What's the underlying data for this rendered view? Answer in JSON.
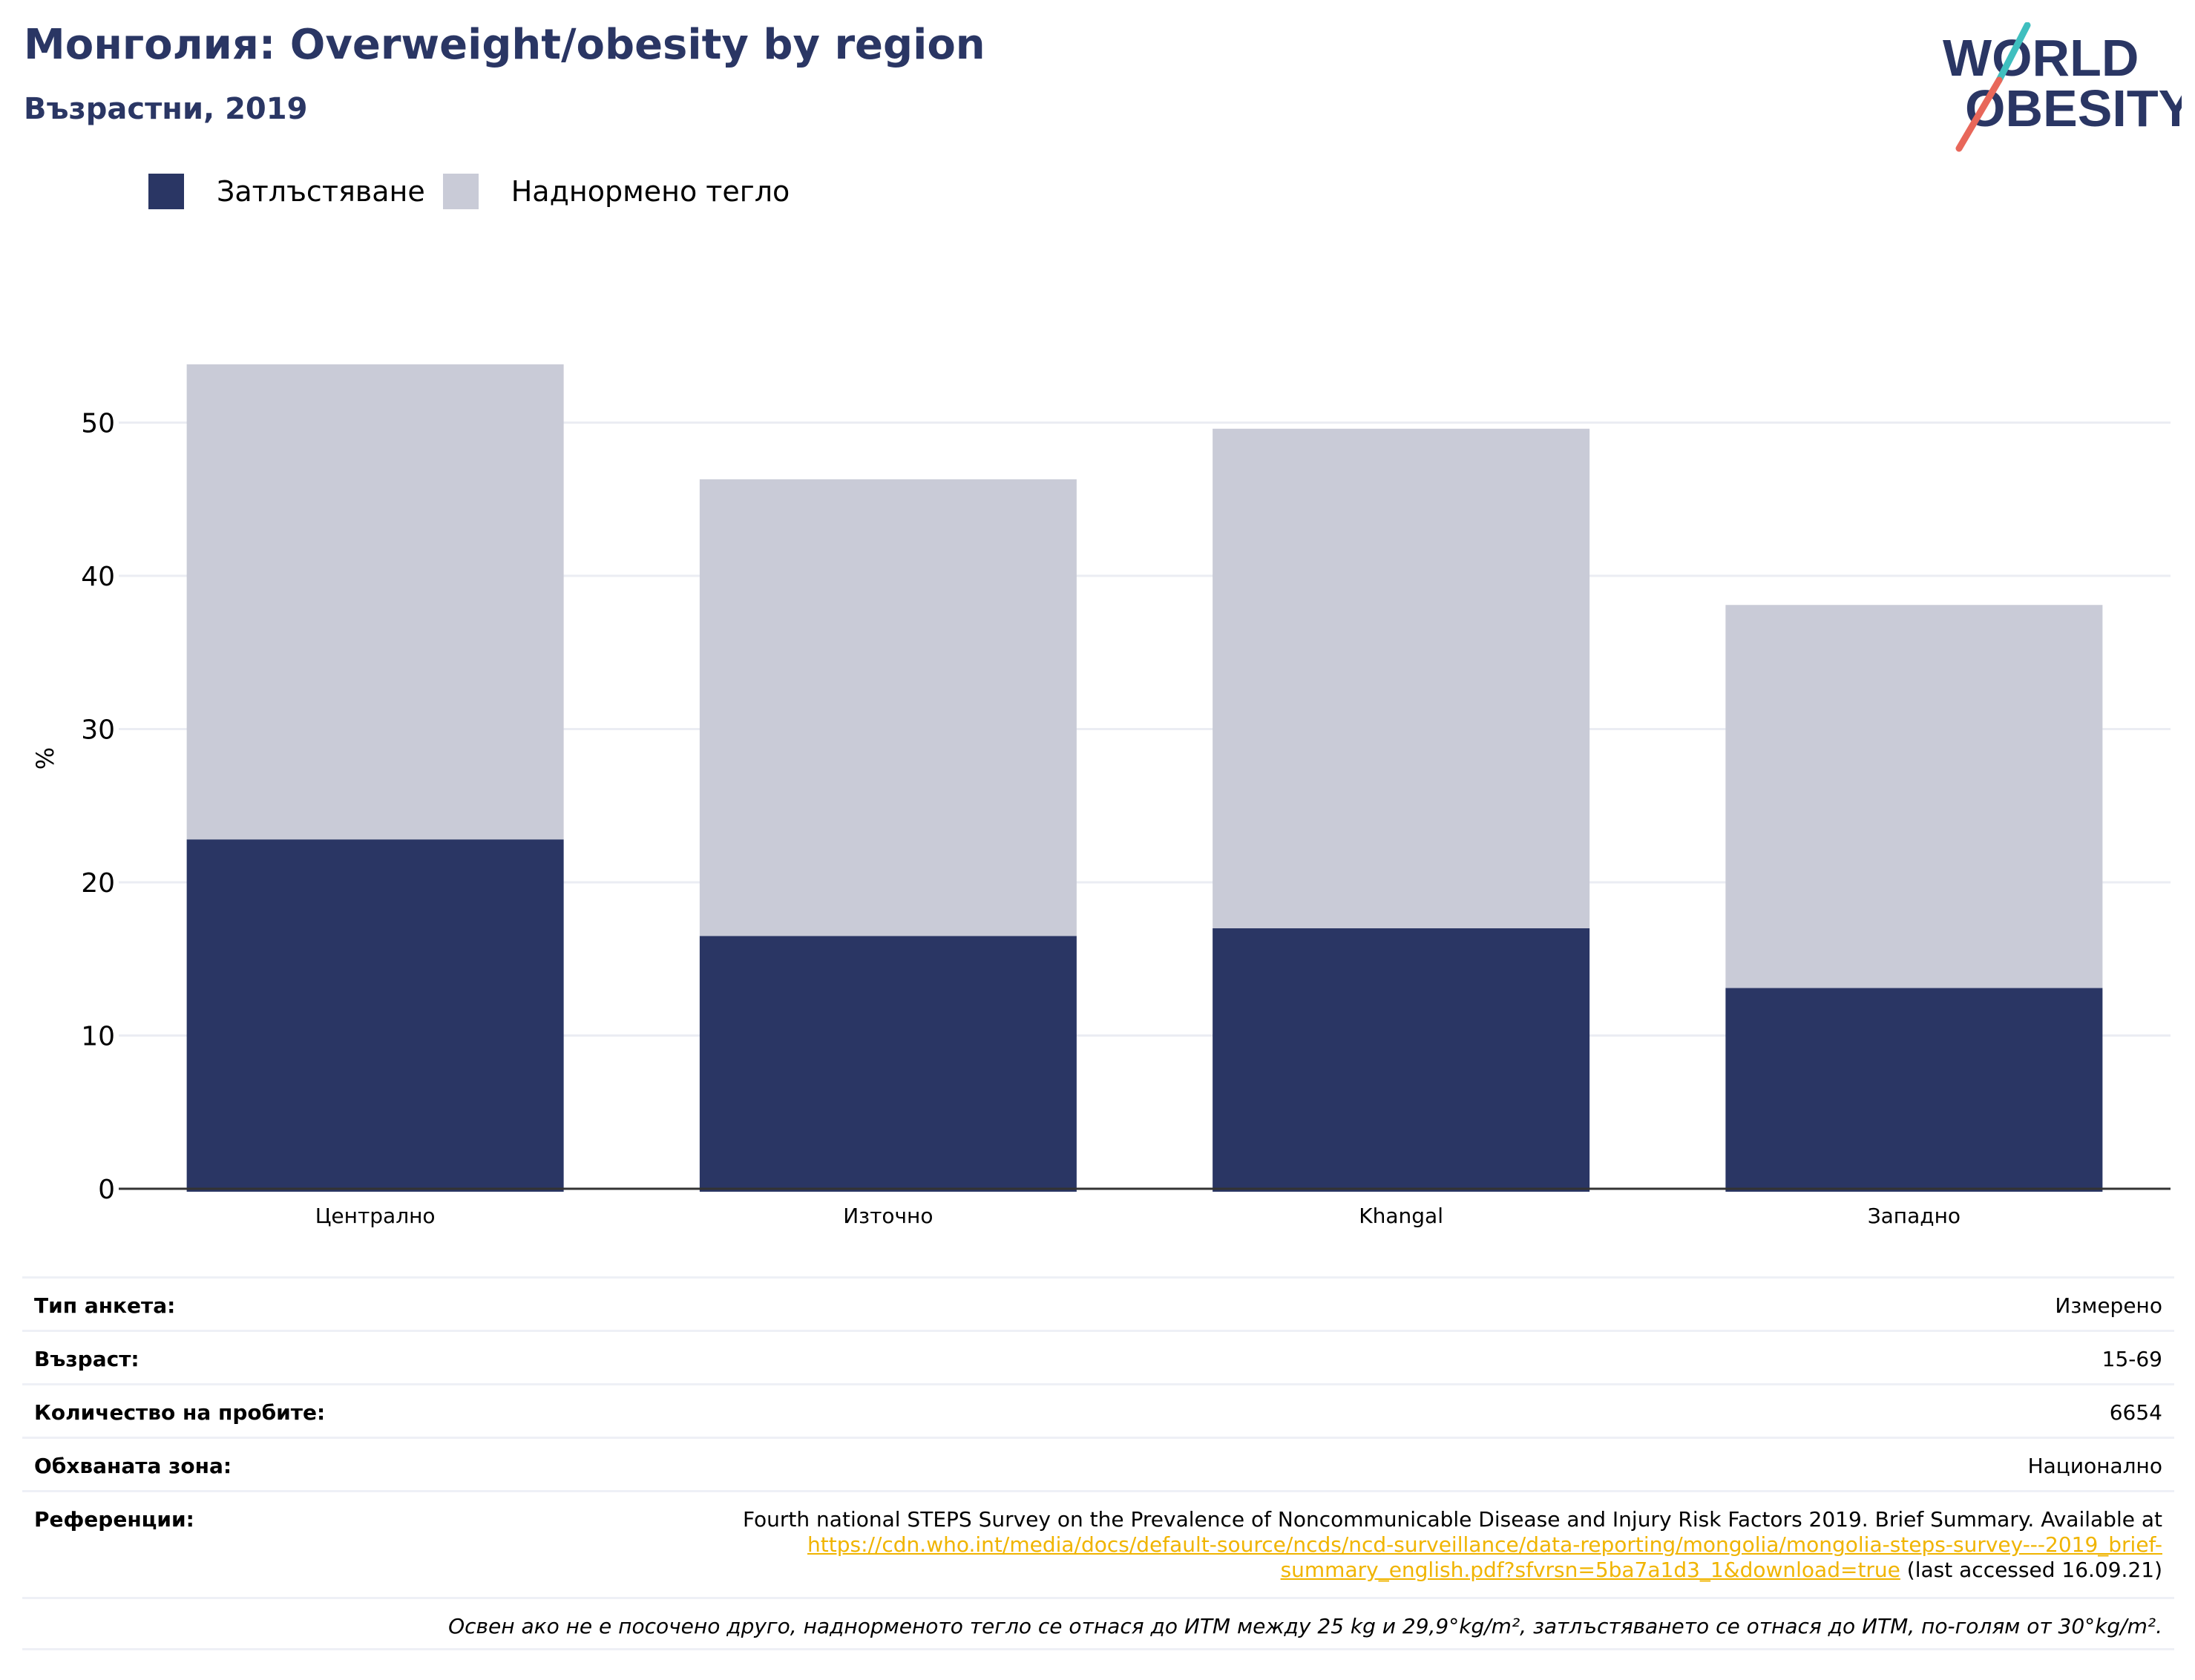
{
  "header": {
    "title": "Монголия: Overweight/obesity by region",
    "subtitle": "Възрастни, 2019"
  },
  "logo": {
    "line1": "WORLD",
    "line2": "OBESITY"
  },
  "colors": {
    "obesity": "#2a3664",
    "overweight": "#c9cbd7",
    "title": "#2a3664",
    "grid": "#ebedf3",
    "link": "#f0b400",
    "logo_teal": "#3fbfbf",
    "logo_red": "#e8675a"
  },
  "chart_data": {
    "type": "bar",
    "stacked": true,
    "categories": [
      "Централно",
      "Източно",
      "Khangal",
      "Западно"
    ],
    "series": [
      {
        "name": "Затлъстяване",
        "values": [
          22.8,
          16.5,
          17.0,
          13.1
        ]
      },
      {
        "name": "Наднормено тегло",
        "values": [
          31.0,
          29.8,
          32.6,
          25.0
        ]
      }
    ],
    "ylabel": "%",
    "xlabel": "",
    "ylim": [
      0,
      55
    ],
    "yticks": [
      0,
      10,
      20,
      30,
      40,
      50
    ],
    "grid": true,
    "legend_position": "top-left"
  },
  "info": {
    "survey_type_label": "Тип анкета:",
    "survey_type_value": "Измерено",
    "age_label": "Възраст:",
    "age_value": "15-69",
    "sample_label": "Количество на пробите:",
    "sample_value": "6654",
    "area_label": "Обхваната зона:",
    "area_value": "Национално",
    "references_label": "Референции:",
    "references_text": "Fourth national STEPS Survey on the Prevalence of Noncommunicable Disease and Injury Risk Factors 2019. Brief Summary. Available at",
    "references_link_1": "https://cdn.who.int/media/docs/default-source/ncds/ncd-surveillance/data-reporting/mongolia/mongolia-steps-survey---2019_brief-",
    "references_link_2": "summary_english.pdf?sfvrsn=5ba7a1d3_1&download=true",
    "references_suffix": " (last accessed 16.09.21)",
    "note": "Освен ако не е посочено друго, наднорменото тегло се отнася до ИТМ между 25 kg и 29,9°kg/m², затлъстяването се отнася до ИТМ, по-голям от 30°kg/m²."
  }
}
